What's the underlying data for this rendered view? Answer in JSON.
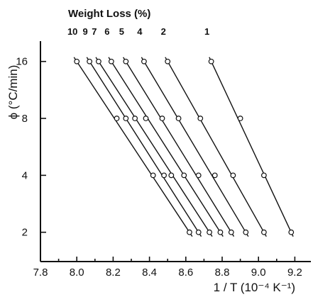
{
  "chart_data": {
    "type": "scatter",
    "title": "",
    "legend_title": "Weight Loss (%)",
    "xlabel": "1 / T  (10⁻⁴ K⁻¹)",
    "ylabel": "ϕ (°C/min)",
    "xlim": [
      7.8,
      9.3
    ],
    "ylim": [
      1.4,
      20.5
    ],
    "y_scale": "log",
    "grid": false,
    "x_ticks": [
      7.8,
      8.0,
      8.2,
      8.4,
      8.6,
      8.8,
      9.0,
      9.2
    ],
    "x_tick_labels": [
      "7.8",
      "8.0",
      "8.2",
      "8.4",
      "8.6",
      "8.8",
      "9.0",
      "9.2"
    ],
    "y_ticks": [
      2,
      4,
      8,
      16
    ],
    "y_tick_labels": [
      "2",
      "4",
      "8",
      "16"
    ],
    "y_values": [
      2,
      4,
      8,
      16
    ],
    "legend_placement": "top, labels above each line",
    "series": [
      {
        "name": "10",
        "x": [
          8.62,
          8.42,
          8.22,
          8.0
        ]
      },
      {
        "name": "9",
        "x": [
          8.67,
          8.48,
          8.27,
          8.07
        ]
      },
      {
        "name": "7",
        "x": [
          8.73,
          8.52,
          8.32,
          8.12
        ]
      },
      {
        "name": "6",
        "x": [
          8.79,
          8.59,
          8.38,
          8.19
        ]
      },
      {
        "name": "5",
        "x": [
          8.85,
          8.67,
          8.47,
          8.27
        ]
      },
      {
        "name": "4",
        "x": [
          8.93,
          8.76,
          8.56,
          8.37
        ]
      },
      {
        "name": "2",
        "x": [
          9.03,
          8.86,
          8.68,
          8.5
        ]
      },
      {
        "name": "1",
        "x": [
          9.18,
          9.03,
          8.9,
          8.74
        ]
      }
    ]
  }
}
